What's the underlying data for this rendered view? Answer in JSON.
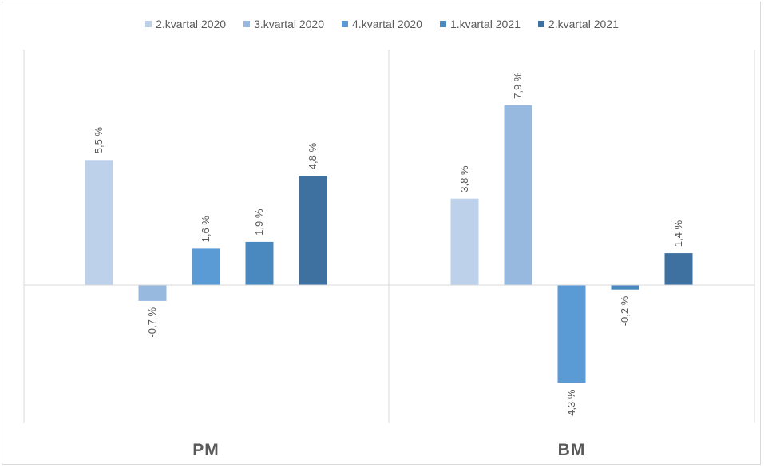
{
  "chart_data": {
    "type": "bar",
    "categories": [
      "PM",
      "BM"
    ],
    "series": [
      {
        "name": "2.kvartal 2020",
        "color": "#bdd1ea",
        "values": [
          5.5,
          3.8
        ],
        "labels": [
          "5,5 %",
          "3,8 %"
        ]
      },
      {
        "name": "3.kvartal 2020",
        "color": "#98b9df",
        "values": [
          -0.7,
          7.9
        ],
        "labels": [
          "-0,7 %",
          "7,9 %"
        ]
      },
      {
        "name": "4.kvartal 2020",
        "color": "#5b9bd5",
        "values": [
          1.6,
          -4.3
        ],
        "labels": [
          "1,6 %",
          "-4,3 %"
        ]
      },
      {
        "name": "1.kvartal 2021",
        "color": "#4a88c0",
        "values": [
          1.9,
          -0.2
        ],
        "labels": [
          "1,9 %",
          "-0,2 %"
        ]
      },
      {
        "name": "2.kvartal 2021",
        "color": "#3e71a0",
        "values": [
          4.8,
          1.4
        ],
        "labels": [
          "4,8 %",
          "1,4 %"
        ]
      }
    ],
    "ylim": [
      -6.0,
      9.0
    ],
    "grid": false,
    "legend_position": "top",
    "data_labels_rotated": true
  }
}
